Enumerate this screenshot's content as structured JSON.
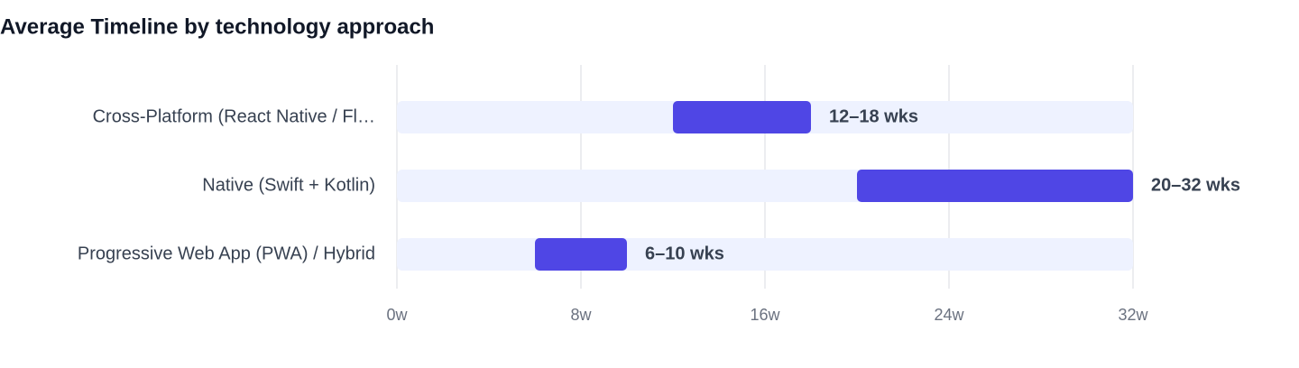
{
  "chart_data": {
    "type": "range-bar",
    "title": "Average Timeline by technology approach",
    "categories": [
      "Cross-Platform (React Native / Fl…",
      "Native (Swift + Kotlin)",
      "Progressive Web App (PWA) / Hybrid"
    ],
    "values": [
      [
        12,
        18
      ],
      [
        20,
        32
      ],
      [
        6,
        10
      ]
    ],
    "value_labels": [
      "12–18 wks",
      "20–32 wks",
      "6–10 wks"
    ],
    "color": "#4f46e5",
    "xlim": [
      0,
      32
    ],
    "xticks": [
      {
        "value": 0,
        "label": "0w"
      },
      {
        "value": 8,
        "label": "8w"
      },
      {
        "value": 16,
        "label": "16w"
      },
      {
        "value": 24,
        "label": "24w"
      },
      {
        "value": 32,
        "label": "32w"
      }
    ],
    "grid": true
  }
}
